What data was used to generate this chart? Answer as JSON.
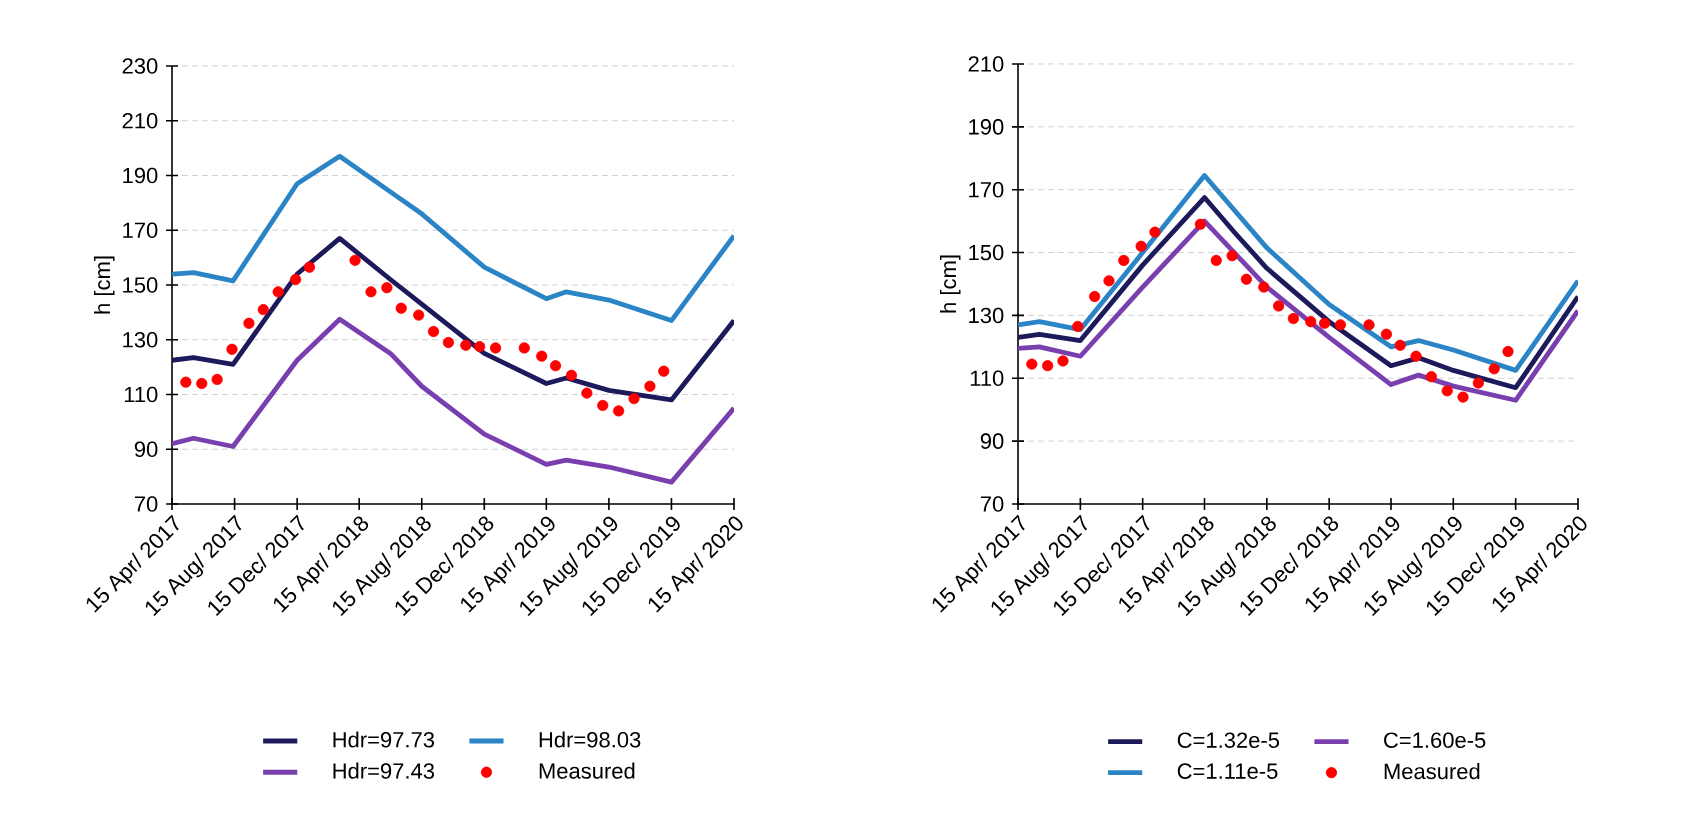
{
  "chart_data": [
    {
      "type": "line",
      "ylabel": "h [cm]",
      "xlim": [
        "2017-04-15",
        "2020-04-15"
      ],
      "xticks": [
        {
          "value": "2017-04-15",
          "label": "15 Apr/ 2017"
        },
        {
          "value": "2017-08-15",
          "label": "15 Aug/ 2017"
        },
        {
          "value": "2017-12-15",
          "label": "15 Dec/ 2017"
        },
        {
          "value": "2018-04-15",
          "label": "15 Apr/ 2018"
        },
        {
          "value": "2018-08-15",
          "label": "15 Aug/ 2018"
        },
        {
          "value": "2018-12-15",
          "label": "15 Dec/ 2018"
        },
        {
          "value": "2019-04-15",
          "label": "15 Apr/ 2019"
        },
        {
          "value": "2019-08-15",
          "label": "15 Aug/ 2019"
        },
        {
          "value": "2019-12-15",
          "label": "15 Dec/ 2019"
        },
        {
          "value": "2020-04-15",
          "label": "15 Apr/ 2020"
        }
      ],
      "ylim": [
        70,
        230
      ],
      "yticks": [
        70,
        90,
        110,
        130,
        150,
        170,
        190,
        210,
        230
      ],
      "grid": "y",
      "legend": "bottom",
      "series": [
        {
          "name": "Hdr=97.73",
          "color": "#1c1a5a",
          "marker": "none",
          "x": [
            "2017-04-15",
            "2017-05-27",
            "2017-08-12",
            "2017-12-15",
            "2018-03-08",
            "2018-06-15",
            "2018-08-15",
            "2018-12-15",
            "2019-04-15",
            "2019-05-24",
            "2019-08-15",
            "2019-12-15",
            "2020-04-15"
          ],
          "values": [
            122.5,
            123.5,
            121,
            154,
            167,
            152,
            143,
            125,
            114,
            116,
            111.5,
            108,
            137
          ]
        },
        {
          "name": "Hdr=98.03",
          "color": "#2a84c6",
          "marker": "none",
          "x": [
            "2017-04-15",
            "2017-05-27",
            "2017-08-12",
            "2017-12-15",
            "2018-03-08",
            "2018-06-15",
            "2018-08-15",
            "2018-12-15",
            "2019-04-15",
            "2019-05-24",
            "2019-08-15",
            "2019-12-15",
            "2020-04-15"
          ],
          "values": [
            154,
            154.5,
            151.5,
            187,
            197,
            184,
            176,
            156.5,
            145,
            147.5,
            144.5,
            137,
            168
          ]
        },
        {
          "name": "Hdr=97.43",
          "color": "#7a3fae",
          "marker": "none",
          "x": [
            "2017-04-15",
            "2017-05-27",
            "2017-08-12",
            "2017-12-15",
            "2018-03-08",
            "2018-06-15",
            "2018-08-15",
            "2018-12-15",
            "2019-04-15",
            "2019-05-24",
            "2019-08-15",
            "2019-12-15",
            "2020-04-15"
          ],
          "values": [
            92,
            94,
            91,
            122.5,
            137.5,
            125,
            113,
            95.5,
            84.5,
            86,
            83.5,
            78,
            105
          ]
        },
        {
          "name": "Measured",
          "type": "scatter",
          "color": "#ff0000",
          "marker": "circle",
          "x": [
            "2017-05-12",
            "2017-06-12",
            "2017-07-12",
            "2017-08-10",
            "2017-09-12",
            "2017-10-10",
            "2017-11-08",
            "2017-12-12",
            "2018-01-08",
            "2018-04-07",
            "2018-05-08",
            "2018-06-08",
            "2018-07-06",
            "2018-08-09",
            "2018-09-07",
            "2018-10-06",
            "2018-11-09",
            "2018-12-06",
            "2019-01-06",
            "2019-03-03",
            "2019-04-06",
            "2019-05-03",
            "2019-06-03",
            "2019-07-03",
            "2019-08-03",
            "2019-09-03",
            "2019-10-03",
            "2019-11-03",
            "2019-11-30"
          ],
          "values": [
            114.5,
            114,
            115.5,
            126.5,
            136,
            141,
            147.5,
            152,
            156.5,
            159,
            147.5,
            149,
            141.5,
            139,
            133,
            129,
            128,
            127.5,
            127,
            127,
            124,
            120.5,
            117,
            110.5,
            106,
            104,
            108.5,
            113,
            118.5
          ]
        }
      ]
    },
    {
      "type": "line",
      "ylabel": "h [cm]",
      "xlim": [
        "2017-04-15",
        "2020-04-15"
      ],
      "xticks": [
        {
          "value": "2017-04-15",
          "label": "15 Apr/ 2017"
        },
        {
          "value": "2017-08-15",
          "label": "15 Aug/ 2017"
        },
        {
          "value": "2017-12-15",
          "label": "15 Dec/ 2017"
        },
        {
          "value": "2018-04-15",
          "label": "15 Apr/ 2018"
        },
        {
          "value": "2018-08-15",
          "label": "15 Aug/ 2018"
        },
        {
          "value": "2018-12-15",
          "label": "15 Dec/ 2018"
        },
        {
          "value": "2019-04-15",
          "label": "15 Apr/ 2019"
        },
        {
          "value": "2019-08-15",
          "label": "15 Aug/ 2019"
        },
        {
          "value": "2019-12-15",
          "label": "15 Dec/ 2019"
        },
        {
          "value": "2020-04-15",
          "label": "15 Apr/ 2020"
        }
      ],
      "ylim": [
        70,
        210
      ],
      "yticks": [
        70,
        90,
        110,
        130,
        150,
        170,
        190,
        210
      ],
      "grid": "y",
      "legend": "bottom",
      "series": [
        {
          "name": "C=1.32e-5",
          "color": "#1c1a5a",
          "marker": "none",
          "x": [
            "2017-04-15",
            "2017-05-27",
            "2017-08-15",
            "2017-12-15",
            "2018-04-15",
            "2018-06-15",
            "2018-08-15",
            "2018-12-15",
            "2019-04-15",
            "2019-06-08",
            "2019-08-15",
            "2019-12-15",
            "2020-04-15"
          ],
          "values": [
            123,
            124,
            122,
            146,
            167.5,
            156,
            145,
            128,
            114,
            116.5,
            112.5,
            107,
            136
          ]
        },
        {
          "name": "C=1.60e-5",
          "color": "#7a3fae",
          "marker": "none",
          "x": [
            "2017-04-15",
            "2017-05-27",
            "2017-08-15",
            "2017-12-15",
            "2018-04-15",
            "2018-06-15",
            "2018-08-15",
            "2018-12-15",
            "2019-04-15",
            "2019-06-08",
            "2019-08-15",
            "2019-12-15",
            "2020-04-15"
          ],
          "values": [
            119.5,
            120,
            117,
            139,
            160,
            149.5,
            139,
            123,
            108,
            111,
            107.5,
            103,
            131.5
          ]
        },
        {
          "name": "C=1.11e-5",
          "color": "#2a84c6",
          "marker": "none",
          "x": [
            "2017-04-15",
            "2017-05-27",
            "2017-08-15",
            "2017-12-15",
            "2018-04-15",
            "2018-06-15",
            "2018-08-15",
            "2018-12-15",
            "2019-04-15",
            "2019-06-08",
            "2019-08-15",
            "2019-12-15",
            "2020-04-15"
          ],
          "values": [
            127,
            128,
            125.5,
            150,
            174.5,
            163,
            151.5,
            133.5,
            120,
            122,
            119,
            112.5,
            141
          ]
        },
        {
          "name": "Measured",
          "type": "scatter",
          "color": "#ff0000",
          "marker": "circle",
          "x": [
            "2017-05-12",
            "2017-06-12",
            "2017-07-12",
            "2017-08-10",
            "2017-09-12",
            "2017-10-10",
            "2017-11-08",
            "2017-12-12",
            "2018-01-08",
            "2018-04-07",
            "2018-05-08",
            "2018-06-08",
            "2018-07-06",
            "2018-08-09",
            "2018-09-07",
            "2018-10-06",
            "2018-11-09",
            "2018-12-06",
            "2019-01-06",
            "2019-03-03",
            "2019-04-06",
            "2019-05-03",
            "2019-06-03",
            "2019-07-03",
            "2019-08-03",
            "2019-09-03",
            "2019-10-03",
            "2019-11-03",
            "2019-11-30"
          ],
          "values": [
            114.5,
            114,
            115.5,
            126.5,
            136,
            141,
            147.5,
            152,
            156.5,
            159,
            147.5,
            149,
            141.5,
            139,
            133,
            129,
            128,
            127.5,
            127,
            127,
            124,
            120.5,
            117,
            110.5,
            106,
            104,
            108.5,
            113,
            118.5
          ]
        }
      ]
    }
  ]
}
